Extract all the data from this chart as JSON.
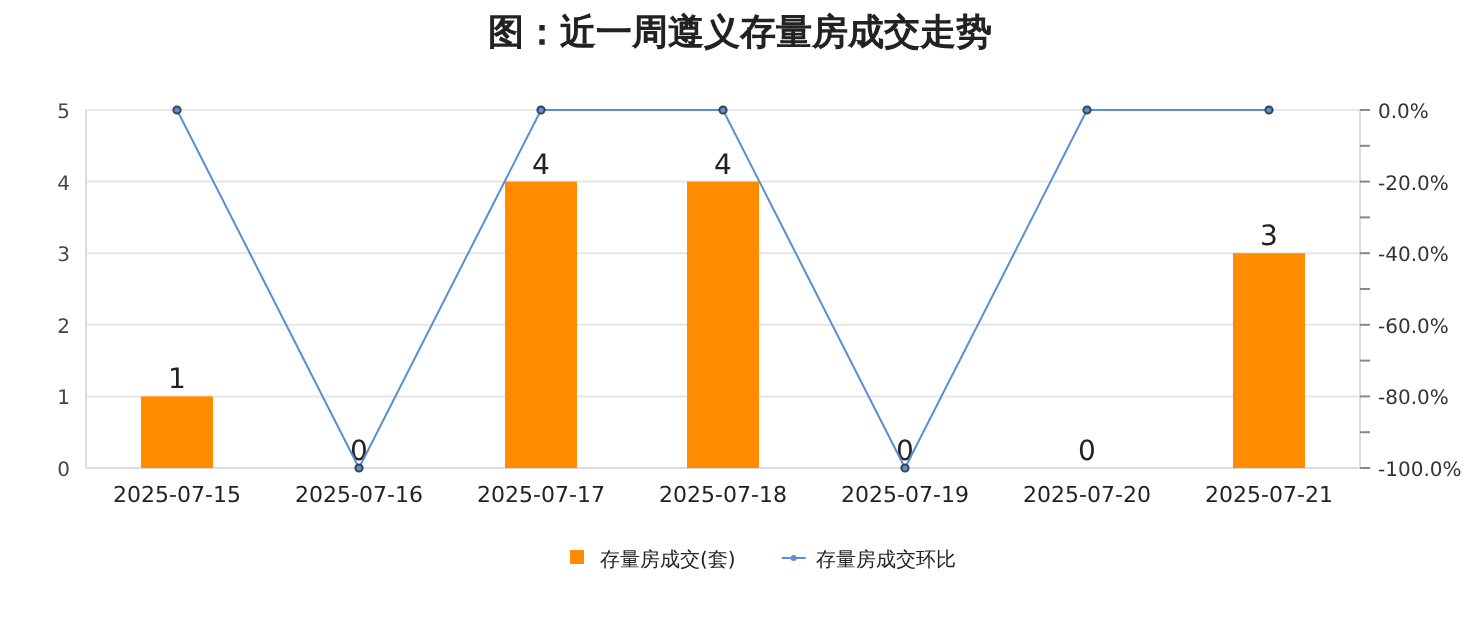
{
  "chart_data": {
    "type": "bar",
    "title": "图：近一周遵义存量房成交走势",
    "categories": [
      "2025-07-15",
      "2025-07-16",
      "2025-07-17",
      "2025-07-18",
      "2025-07-19",
      "2025-07-20",
      "2025-07-21"
    ],
    "series": [
      {
        "name": "存量房成交(套)",
        "color": "#ff8c00",
        "values": [
          1,
          0,
          4,
          4,
          0,
          0,
          3
        ],
        "value_labels": [
          "1",
          "0",
          "4",
          "4",
          "0",
          "0",
          "3"
        ]
      },
      {
        "name": "存量房成交环比",
        "type": "line",
        "axis": "y2",
        "color": "#5b8fd0",
        "marker": "circle",
        "values": [
          0,
          -100,
          0,
          0,
          -100,
          0,
          0
        ]
      }
    ],
    "ylim": [
      0,
      5
    ],
    "yticks": [
      0,
      1,
      2,
      3,
      4,
      5
    ],
    "y2lim": [
      -100,
      0
    ],
    "y2ticks": [
      {
        "value": -100,
        "label": "-100.0%"
      },
      {
        "value": -90,
        "label": null
      },
      {
        "value": -80,
        "label": "-80.0%"
      },
      {
        "value": -70,
        "label": null
      },
      {
        "value": -60,
        "label": "-60.0%"
      },
      {
        "value": -50,
        "label": null
      },
      {
        "value": -40,
        "label": "-40.0%"
      },
      {
        "value": -30,
        "label": null
      },
      {
        "value": -20,
        "label": "-20.0%"
      },
      {
        "value": -10,
        "label": null
      },
      {
        "value": 0,
        "label": "0.0%"
      }
    ],
    "grid": "y",
    "legend": "bottom"
  }
}
